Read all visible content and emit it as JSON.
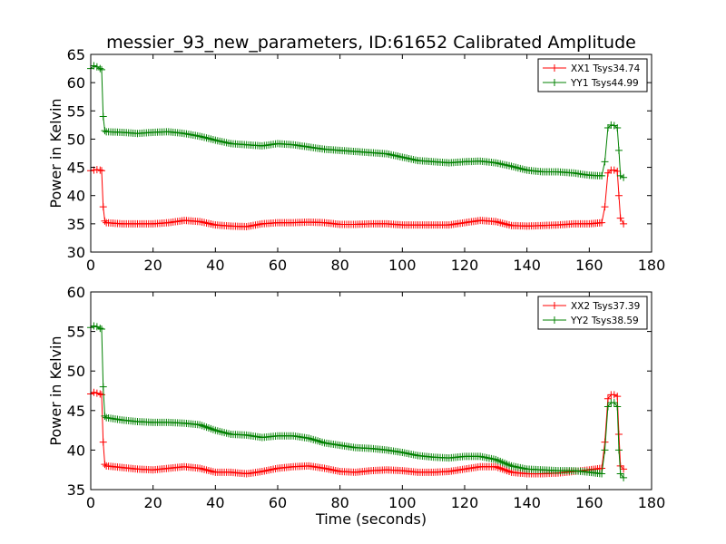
{
  "chart_data": [
    {
      "type": "line",
      "title": "messier_93_new_parameters, ID:61652 Calibrated Amplitude",
      "xlabel": "",
      "ylabel": "Power in Kelvin",
      "xlim": [
        0,
        180
      ],
      "ylim": [
        30,
        65
      ],
      "xticks": [
        "0",
        "20",
        "40",
        "60",
        "80",
        "100",
        "120",
        "140",
        "160",
        "180"
      ],
      "yticks": [
        "30",
        "35",
        "40",
        "45",
        "50",
        "55",
        "60",
        "65"
      ],
      "grid": false,
      "legend": "top-right",
      "series": [
        {
          "name": "XX1 Tsys34.74",
          "color": "#ff0000",
          "x": [
            0,
            1,
            2,
            3,
            3.5,
            4,
            4.5,
            5,
            10,
            15,
            20,
            25,
            30,
            35,
            40,
            45,
            50,
            55,
            60,
            65,
            70,
            75,
            80,
            85,
            90,
            95,
            100,
            105,
            110,
            115,
            120,
            125,
            130,
            135,
            140,
            145,
            150,
            155,
            160,
            164,
            165,
            166,
            167,
            168,
            169,
            169.5,
            170,
            171
          ],
          "y": [
            44.4,
            44.5,
            44.6,
            44.5,
            44.4,
            38,
            35.5,
            35.2,
            35.0,
            35.0,
            35.0,
            35.2,
            35.6,
            35.4,
            34.8,
            34.6,
            34.5,
            35.0,
            35.2,
            35.2,
            35.3,
            35.2,
            34.9,
            34.9,
            35.0,
            35.0,
            34.8,
            34.8,
            34.8,
            34.8,
            35.2,
            35.6,
            35.4,
            34.7,
            34.6,
            34.7,
            34.8,
            35.0,
            35.0,
            35.2,
            38,
            44,
            44.5,
            44.5,
            44.3,
            40,
            36,
            35.0
          ]
        },
        {
          "name": "YY1 Tsys44.99",
          "color": "#008000",
          "x": [
            0,
            1,
            2,
            3,
            3.5,
            4,
            4.5,
            5,
            10,
            15,
            20,
            25,
            30,
            35,
            40,
            45,
            50,
            55,
            60,
            65,
            70,
            75,
            80,
            85,
            90,
            95,
            100,
            105,
            110,
            115,
            120,
            125,
            130,
            135,
            140,
            145,
            150,
            155,
            160,
            164,
            165,
            166,
            167,
            168,
            169,
            169.5,
            170,
            171
          ],
          "y": [
            62.5,
            63.0,
            62.8,
            62.5,
            62.3,
            54,
            51.5,
            51.3,
            51.2,
            51.0,
            51.2,
            51.3,
            51.0,
            50.5,
            49.8,
            49.2,
            49.0,
            48.8,
            49.2,
            49.0,
            48.6,
            48.2,
            48.0,
            47.8,
            47.6,
            47.4,
            46.8,
            46.2,
            46.0,
            45.8,
            46.0,
            46.1,
            45.8,
            45.2,
            44.5,
            44.2,
            44.2,
            44.0,
            43.6,
            43.5,
            46,
            52,
            52.5,
            52.4,
            52.0,
            48,
            43.5,
            43.2
          ]
        }
      ]
    },
    {
      "type": "line",
      "title": "",
      "xlabel": "Time (seconds)",
      "ylabel": "Power in Kelvin",
      "xlim": [
        0,
        180
      ],
      "ylim": [
        35,
        60
      ],
      "xticks": [
        "0",
        "20",
        "40",
        "60",
        "80",
        "100",
        "120",
        "140",
        "160",
        "180"
      ],
      "yticks": [
        "35",
        "40",
        "45",
        "50",
        "55",
        "60"
      ],
      "grid": false,
      "legend": "top-right",
      "series": [
        {
          "name": "XX2 Tsys37.39",
          "color": "#ff0000",
          "x": [
            0,
            1,
            2,
            3,
            3.5,
            4,
            4.5,
            5,
            10,
            15,
            20,
            25,
            30,
            35,
            40,
            45,
            50,
            55,
            60,
            65,
            70,
            75,
            80,
            85,
            90,
            95,
            100,
            105,
            110,
            115,
            120,
            125,
            130,
            135,
            140,
            145,
            150,
            155,
            160,
            164,
            165,
            166,
            167,
            168,
            169,
            169.5,
            170,
            171
          ],
          "y": [
            47.1,
            47.3,
            47.2,
            47.1,
            47.0,
            41,
            38.2,
            38.0,
            37.8,
            37.6,
            37.5,
            37.7,
            37.9,
            37.7,
            37.2,
            37.2,
            37.0,
            37.3,
            37.7,
            37.9,
            38.0,
            37.7,
            37.3,
            37.2,
            37.4,
            37.5,
            37.4,
            37.2,
            37.2,
            37.3,
            37.6,
            37.9,
            37.9,
            37.2,
            37.0,
            37.0,
            37.1,
            37.3,
            37.5,
            37.7,
            41,
            46.5,
            47.0,
            47.0,
            46.8,
            42,
            38,
            37.6
          ]
        },
        {
          "name": "YY2 Tsys38.59",
          "color": "#008000",
          "x": [
            0,
            1,
            2,
            3,
            3.5,
            4,
            4.5,
            5,
            10,
            15,
            20,
            25,
            30,
            35,
            40,
            45,
            50,
            55,
            60,
            65,
            70,
            75,
            80,
            85,
            90,
            95,
            100,
            105,
            110,
            115,
            120,
            125,
            130,
            135,
            140,
            145,
            150,
            155,
            160,
            164,
            165,
            166,
            167,
            168,
            169,
            169.5,
            170,
            171
          ],
          "y": [
            55.5,
            55.7,
            55.6,
            55.4,
            55.3,
            48,
            44.3,
            44.1,
            43.8,
            43.6,
            43.5,
            43.5,
            43.4,
            43.2,
            42.5,
            42.0,
            41.9,
            41.6,
            41.8,
            41.8,
            41.5,
            40.9,
            40.6,
            40.3,
            40.2,
            40.0,
            39.7,
            39.3,
            39.1,
            39.0,
            39.2,
            39.2,
            38.8,
            38.0,
            37.6,
            37.5,
            37.4,
            37.4,
            37.2,
            37.0,
            40,
            45.5,
            46.0,
            46.0,
            45.5,
            40,
            37.0,
            36.5
          ]
        }
      ]
    }
  ]
}
